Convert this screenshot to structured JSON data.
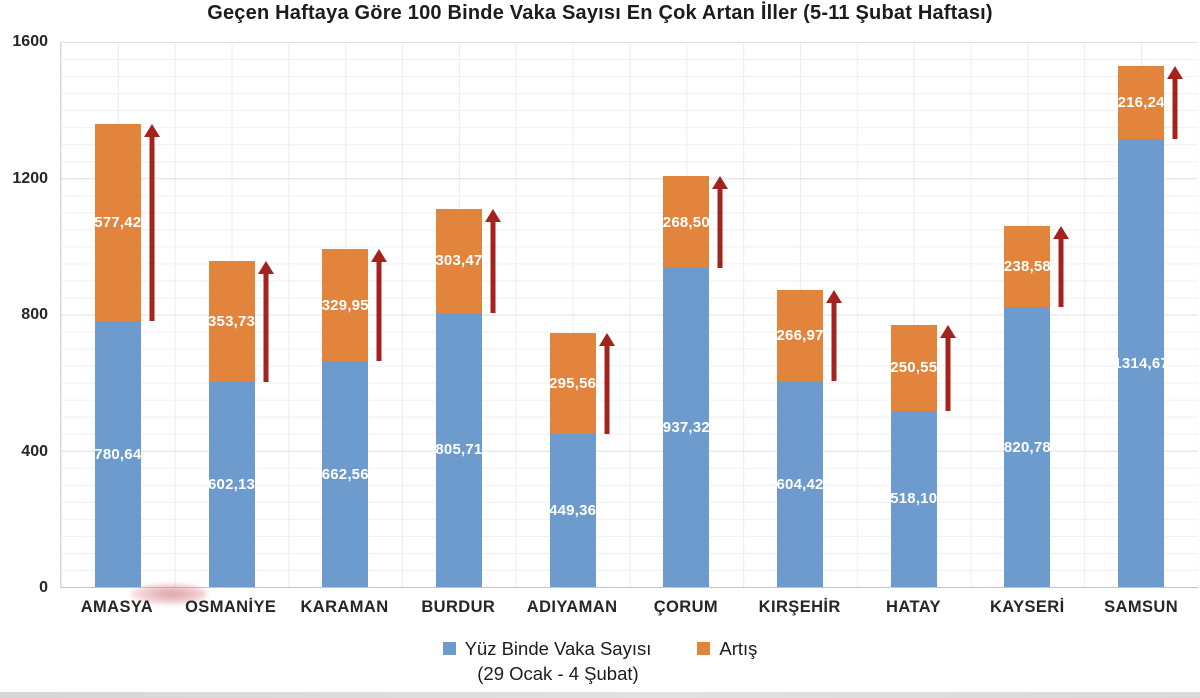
{
  "chart_data": {
    "type": "bar",
    "stacked": true,
    "title": "Geçen Haftaya Göre 100 Binde Vaka Sayısı En Çok Artan İller (5-11 Şubat Haftası)",
    "categories": [
      "AMASYA",
      "OSMANİYE",
      "KARAMAN",
      "BURDUR",
      "ADIYAMAN",
      "ÇORUM",
      "KIRŞEHİR",
      "HATAY",
      "KAYSERİ",
      "SAMSUN"
    ],
    "series": [
      {
        "name": "Yüz Binde Vaka Sayısı",
        "name_line2": "(29 Ocak - 4 Şubat)",
        "color": "#6e9bcd",
        "values": [
          780.64,
          602.13,
          662.56,
          805.71,
          449.36,
          937.32,
          604.42,
          518.1,
          820.78,
          1314.67
        ],
        "labels": [
          "780,64",
          "602,13",
          "662,56",
          "805,71",
          "449,36",
          "937,32",
          "604,42",
          "518,10",
          "820,78",
          "1314,67"
        ]
      },
      {
        "name": "Artış",
        "color": "#e2843c",
        "values": [
          577.42,
          353.73,
          329.95,
          303.47,
          295.56,
          268.5,
          266.97,
          250.55,
          238.58,
          216.24
        ],
        "labels": [
          "577,42",
          "353,73",
          "329,95",
          "303,47",
          "295,56",
          "268,50",
          "266,97",
          "250,55",
          "238,58",
          "216,24"
        ]
      }
    ],
    "ylim": [
      0,
      1600
    ],
    "yticks": [
      "0",
      "400",
      "800",
      "1200",
      "1600"
    ],
    "arrow_color": "#a5231e",
    "grid": true,
    "legend_position": "bottom"
  }
}
